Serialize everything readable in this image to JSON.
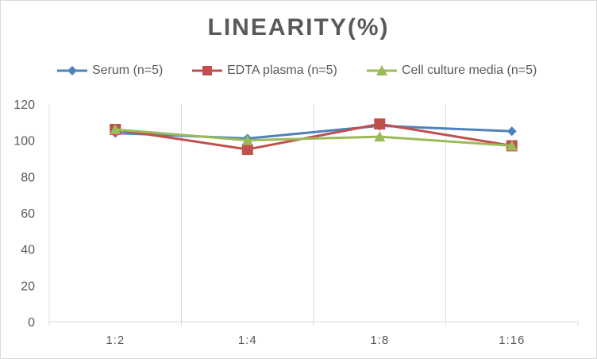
{
  "chart_data": {
    "type": "line",
    "title": "LINEARITY(%)",
    "xlabel": "",
    "ylabel": "",
    "categories": [
      "1:2",
      "1:4",
      "1:8",
      "1:16"
    ],
    "ylim": [
      0,
      120
    ],
    "yticks": [
      0,
      20,
      40,
      60,
      80,
      100,
      120
    ],
    "grid": "vertical",
    "legend_position": "top",
    "series": [
      {
        "name": "Serum (n=5)",
        "values": [
          104,
          101,
          108,
          105
        ],
        "color": "#4f81bd",
        "marker": "diamond"
      },
      {
        "name": "EDTA plasma (n=5)",
        "values": [
          106,
          95,
          109,
          97
        ],
        "color": "#c0504d",
        "marker": "square"
      },
      {
        "name": "Cell culture media (n=5)",
        "values": [
          106,
          100,
          102,
          97
        ],
        "color": "#9bbb59",
        "marker": "triangle"
      }
    ]
  }
}
